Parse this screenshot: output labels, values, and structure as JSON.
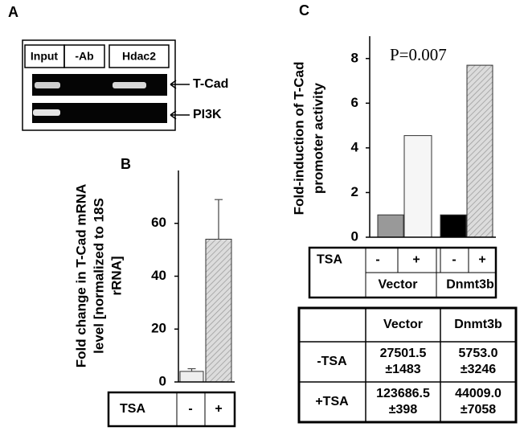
{
  "panel_a": {
    "label": "A",
    "lanes": [
      "Input",
      "-Ab",
      "Hdac2"
    ],
    "bands": [
      "T-Cad",
      "PI3K"
    ]
  },
  "chart_data": [
    {
      "type": "bar",
      "label": "B",
      "y_label_lines": [
        "Fold change in T-Cad mRNA",
        "level [normalized to 18S",
        "rRNA]"
      ],
      "row_label": "TSA",
      "categories": [
        "-",
        "+"
      ],
      "values": [
        4,
        54
      ],
      "errors": [
        1,
        15
      ],
      "colors": [
        "#eeeeee",
        "#d4d4d4"
      ],
      "hatched": [
        false,
        true
      ],
      "ylim": [
        0,
        80
      ],
      "yticks": [
        0,
        20,
        40,
        60
      ]
    },
    {
      "type": "bar",
      "label": "C",
      "y_label_lines": [
        "Fold-induction of T-Cad",
        "promoter activity"
      ],
      "annotation": "P=0.007",
      "row_label": "TSA",
      "categories": [
        "-",
        "+",
        "-",
        "+"
      ],
      "groups": [
        "Vector",
        "Dnmt3b"
      ],
      "values": [
        1.0,
        4.55,
        1.0,
        7.7
      ],
      "colors": [
        "#999999",
        "#f6f6f6",
        "#000000",
        "#d4d4d4"
      ],
      "hatched": [
        false,
        false,
        false,
        true
      ],
      "ylim": [
        0,
        9
      ],
      "yticks": [
        0,
        2,
        4,
        6,
        8
      ]
    }
  ],
  "table_c": {
    "columns": [
      "Vector",
      "Dnmt3b"
    ],
    "rows": [
      {
        "label": "-TSA",
        "cells": [
          [
            "27501.5",
            "±1483"
          ],
          [
            "5753.0",
            "±3246"
          ]
        ]
      },
      {
        "label": "+TSA",
        "cells": [
          [
            "123686.5",
            "±398"
          ],
          [
            "44009.0",
            "±7058"
          ]
        ]
      }
    ]
  }
}
